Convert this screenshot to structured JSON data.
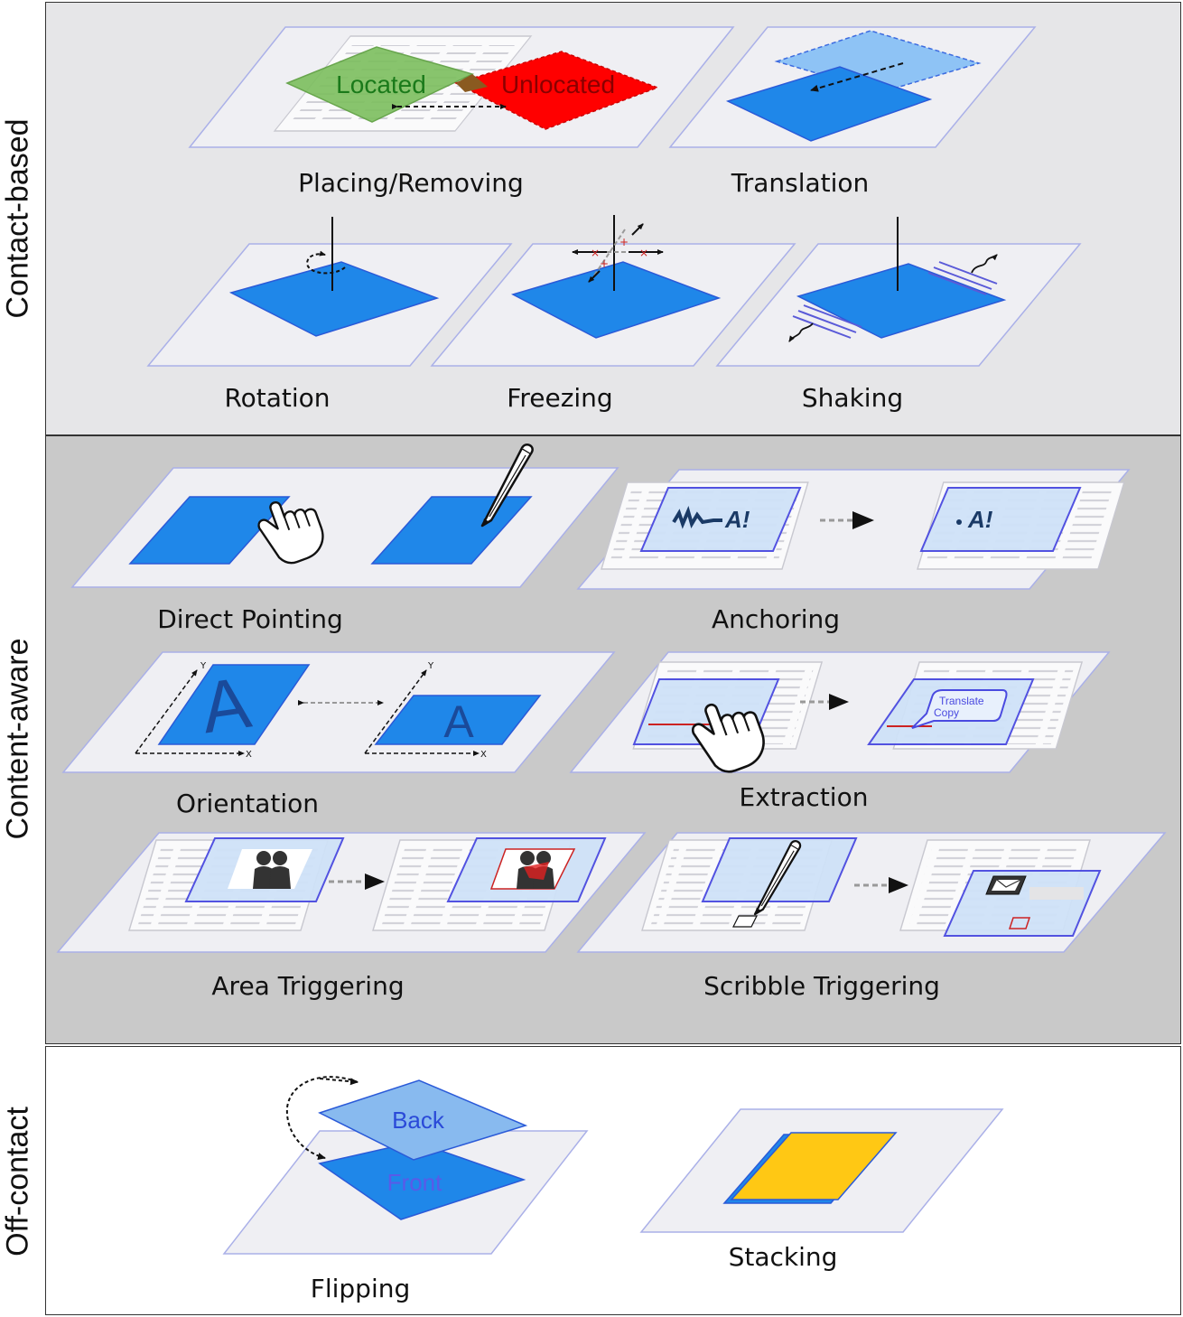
{
  "colors": {
    "contact_bg": "#e6e6e8",
    "content_bg": "#c9c9c9",
    "offcontact_bg": "#ffffff",
    "blue": "#1f87e9",
    "light_blue": "#7fb6ee",
    "green": "#7cbf5e",
    "red": "#ff0000",
    "yellow": "#ffc814",
    "surface": "#efeff3"
  },
  "sections": {
    "contact": "Contact-based",
    "content": "Content-aware",
    "off": "Off-contact"
  },
  "captions": {
    "placing": "Placing/Removing",
    "translation": "Translation",
    "rotation": "Rotation",
    "freezing": "Freezing",
    "shaking": "Shaking",
    "direct": "Direct Pointing",
    "anchoring": "Anchoring",
    "orientation": "Orientation",
    "extraction": "Extraction",
    "area": "Area Triggering",
    "scribble": "Scribble Triggering",
    "flipping": "Flipping",
    "stacking": "Stacking"
  },
  "labels": {
    "located": "Located",
    "unlocated": "Unlocated",
    "ink": "A!",
    "letter_a": "A",
    "axis_x": "X",
    "axis_y": "Y",
    "menu_translate": "Translate",
    "menu_copy": "Copy",
    "back": "Back",
    "front": "Front"
  }
}
